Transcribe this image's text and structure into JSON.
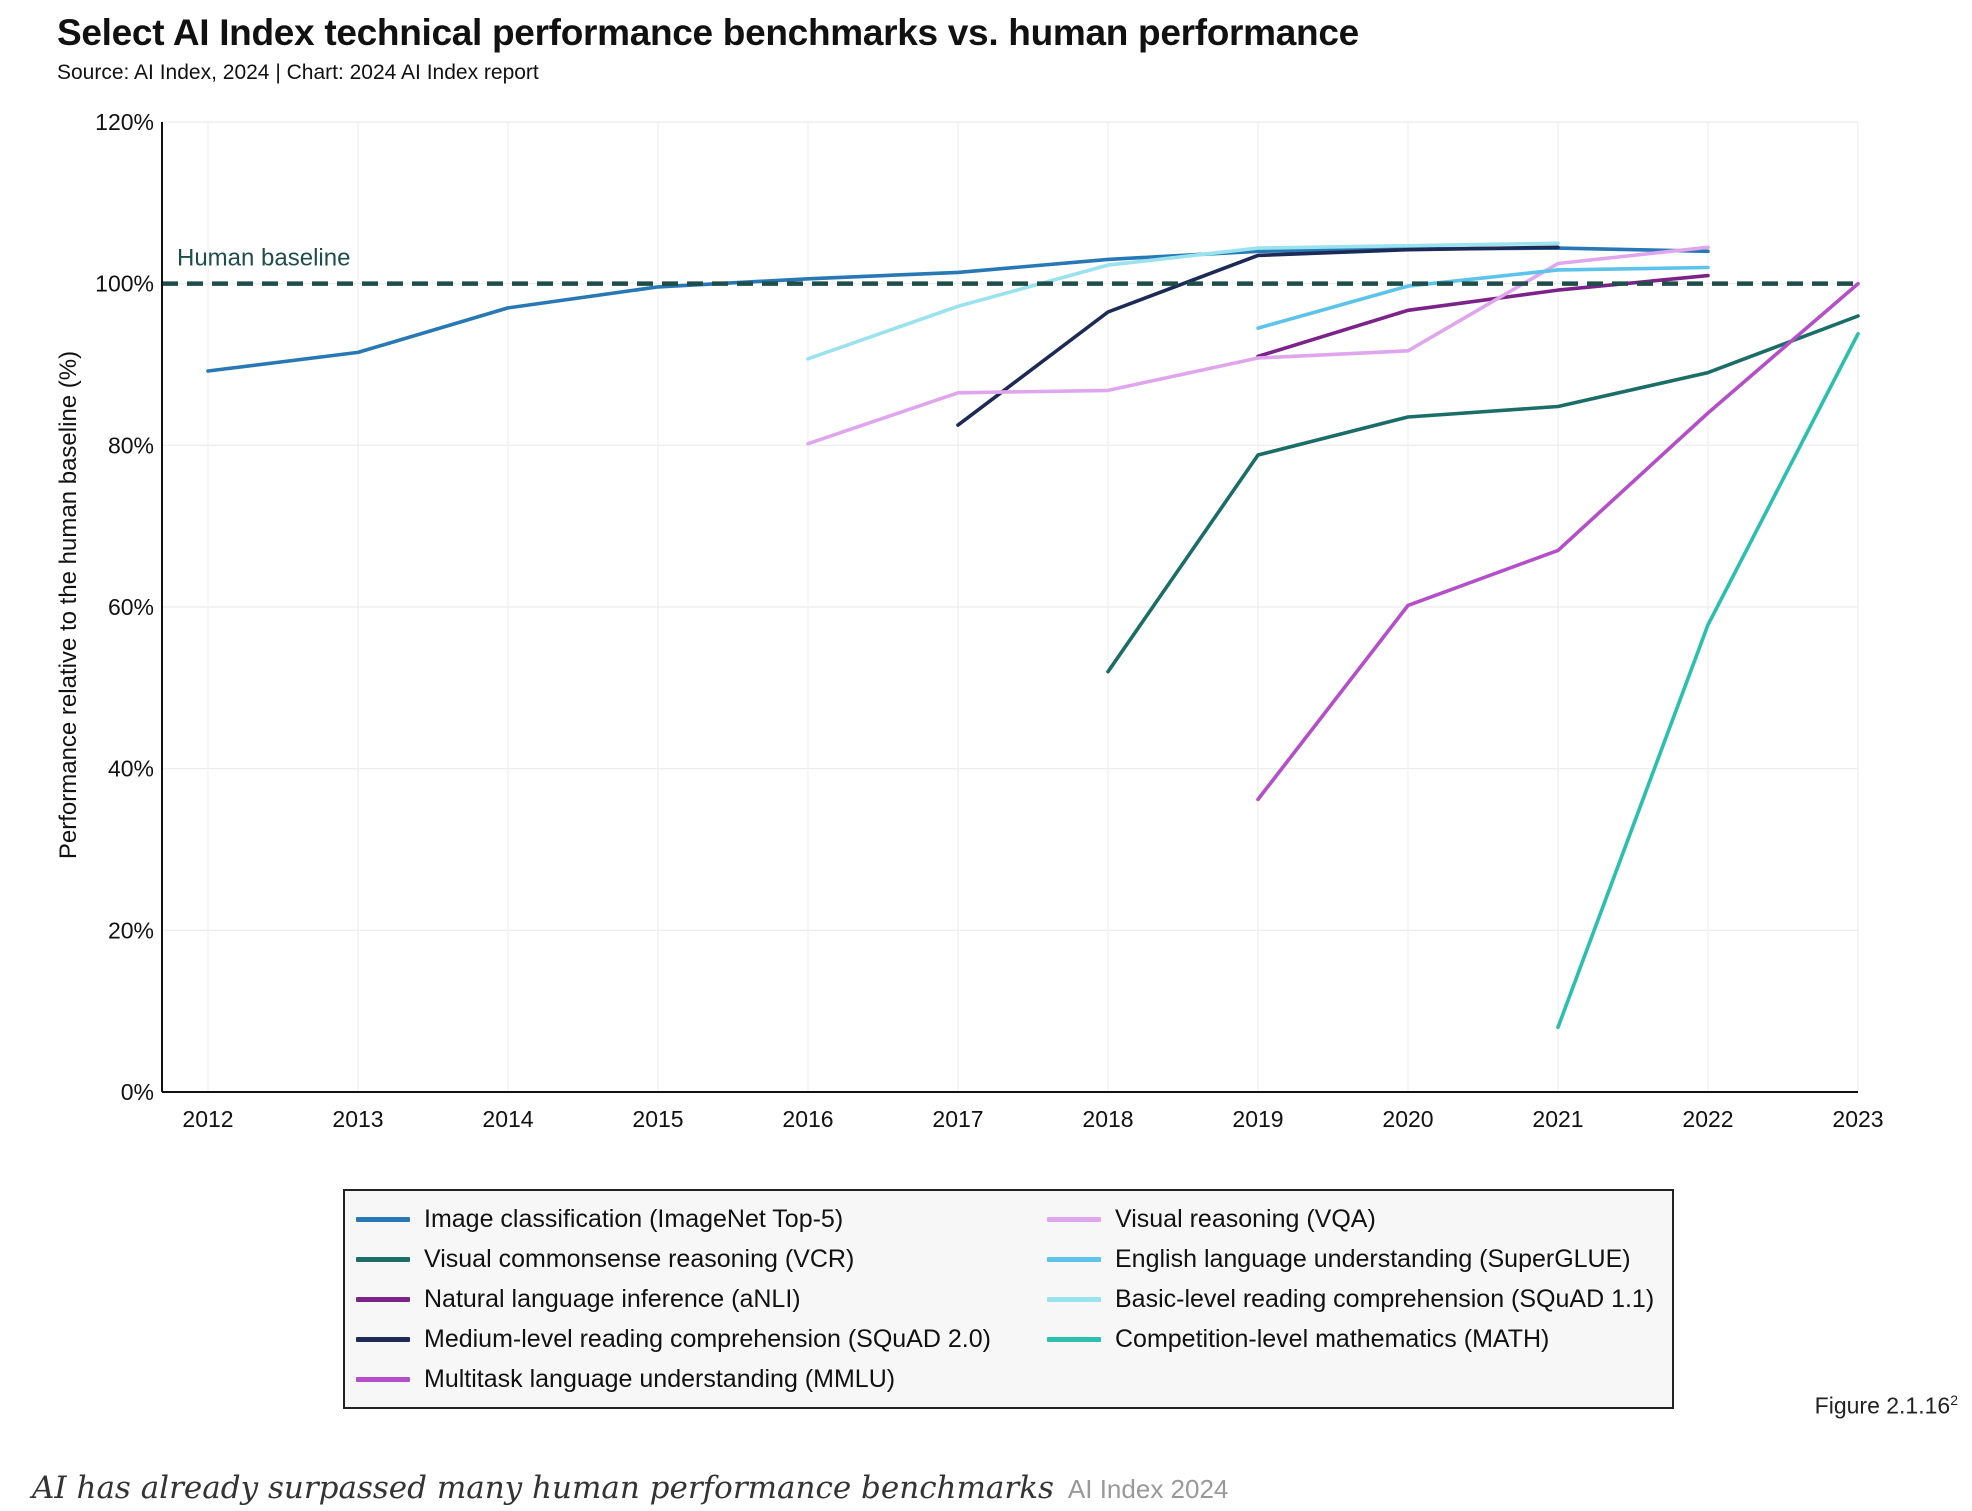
{
  "chart_data": {
    "type": "line",
    "title": "Select AI Index technical performance benchmarks vs. human performance",
    "subtitle": "Source: AI Index, 2024 | Chart: 2024 AI Index report",
    "xlabel": "",
    "ylabel": "Performance relative to the human baseline (%)",
    "x": [
      2012,
      2013,
      2014,
      2015,
      2016,
      2017,
      2018,
      2019,
      2020,
      2021,
      2022,
      2023
    ],
    "x_ticks": [
      "2012",
      "2013",
      "2014",
      "2015",
      "2016",
      "2017",
      "2018",
      "2019",
      "2020",
      "2021",
      "2022",
      "2023"
    ],
    "ylim": [
      0,
      120
    ],
    "y_ticks": [
      "0%",
      "20%",
      "40%",
      "60%",
      "80%",
      "100%",
      "120%"
    ],
    "grid": true,
    "baseline": {
      "value": 100,
      "label": "Human baseline",
      "color": "#1f4e4a"
    },
    "legend_position": "bottom",
    "series": [
      {
        "name": "Image classification (ImageNet Top-5)",
        "color": "#2778b5",
        "points": [
          [
            2012,
            89.2
          ],
          [
            2013,
            91.5
          ],
          [
            2014,
            97
          ],
          [
            2015,
            99.6
          ],
          [
            2016,
            100.6
          ],
          [
            2017,
            101.4
          ],
          [
            2018,
            103
          ],
          [
            2019,
            104
          ],
          [
            2020,
            104.3
          ],
          [
            2021,
            104.4
          ],
          [
            2022,
            104
          ]
        ]
      },
      {
        "name": "Visual commonsense reasoning (VCR)",
        "color": "#1b6d68",
        "points": [
          [
            2018,
            52
          ],
          [
            2019,
            78.8
          ],
          [
            2020,
            83.5
          ],
          [
            2021,
            84.8
          ],
          [
            2022,
            89
          ],
          [
            2023,
            96
          ]
        ]
      },
      {
        "name": "Natural language inference (aNLI)",
        "color": "#7b2388",
        "points": [
          [
            2019,
            91
          ],
          [
            2020,
            96.7
          ],
          [
            2021,
            99.2
          ],
          [
            2022,
            101
          ]
        ]
      },
      {
        "name": "Medium-level reading comprehension (SQuAD 2.0)",
        "color": "#1c2a55",
        "points": [
          [
            2017,
            82.5
          ],
          [
            2018,
            96.5
          ],
          [
            2019,
            103.5
          ],
          [
            2020,
            104.2
          ],
          [
            2021,
            104.5
          ]
        ]
      },
      {
        "name": "Multitask language understanding (MMLU)",
        "color": "#b44fc9",
        "points": [
          [
            2019,
            36.2
          ],
          [
            2020,
            60.2
          ],
          [
            2021,
            67
          ],
          [
            2022,
            84
          ],
          [
            2023,
            100
          ]
        ]
      },
      {
        "name": "Visual reasoning (VQA)",
        "color": "#dfa6ee",
        "points": [
          [
            2016,
            80.2
          ],
          [
            2017,
            86.5
          ],
          [
            2018,
            86.8
          ],
          [
            2019,
            90.8
          ],
          [
            2020,
            91.7
          ],
          [
            2021,
            102.5
          ],
          [
            2022,
            104.5
          ]
        ]
      },
      {
        "name": "English language understanding (SuperGLUE)",
        "color": "#5cc3ea",
        "points": [
          [
            2019,
            94.5
          ],
          [
            2020,
            99.7
          ],
          [
            2021,
            101.7
          ],
          [
            2022,
            102
          ]
        ]
      },
      {
        "name": "Basic-level reading comprehension (SQuAD 1.1)",
        "color": "#9ae3ee",
        "points": [
          [
            2016,
            90.7
          ],
          [
            2017,
            97.2
          ],
          [
            2018,
            102.3
          ],
          [
            2019,
            104.4
          ],
          [
            2020,
            104.7
          ],
          [
            2021,
            105
          ]
        ]
      },
      {
        "name": "Competition-level mathematics (MATH)",
        "color": "#2bbfae",
        "points": [
          [
            2021,
            8
          ],
          [
            2022,
            57.8
          ],
          [
            2023,
            93.8
          ]
        ]
      }
    ]
  },
  "figure_label": "Figure 2.1.16",
  "figure_label_sup": "2",
  "caption": {
    "text": "AI has already surpassed many human performance benchmarks",
    "source": "AI Index 2024"
  }
}
